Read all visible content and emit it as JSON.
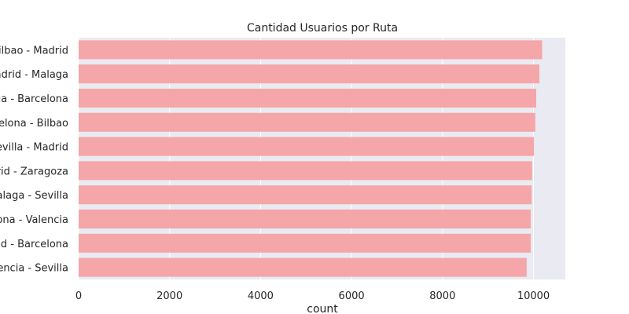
{
  "chart_data": {
    "type": "bar",
    "orientation": "horizontal",
    "title": "Cantidad Usuarios por Ruta",
    "xlabel": "count",
    "ylabel": "",
    "categories": [
      "Bilbao - Madrid",
      "Madrid - Malaga",
      "Malaga - Barcelona",
      "Barcelona - Bilbao",
      "Sevilla - Madrid",
      "Madrid - Zaragoza",
      "Malaga - Sevilla",
      "Barcelona - Valencia",
      "Madrid - Barcelona",
      "Valencia - Sevilla"
    ],
    "values": [
      10190,
      10130,
      10060,
      10040,
      10010,
      9970,
      9960,
      9940,
      9940,
      9850
    ],
    "xlim": [
      0,
      10700
    ],
    "xticks": [
      0,
      2000,
      4000,
      6000,
      8000,
      10000
    ],
    "grid": true,
    "legend": "none",
    "colors": {
      "bar": "#f4a6a8",
      "plot_background": "#eaeaf2",
      "grid": "#ffffff",
      "text": "#262626"
    }
  }
}
